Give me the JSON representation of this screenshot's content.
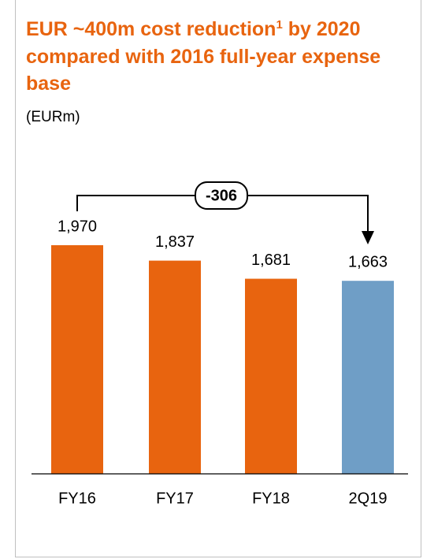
{
  "chart_data": {
    "type": "bar",
    "title": [
      "EUR ~400m cost reduction",
      "1",
      " by 2020 compared with 2016 full-year expense base"
    ],
    "subtitle": "(EURm)",
    "categories": [
      "FY16",
      "FY17",
      "FY18",
      "2Q19"
    ],
    "values": [
      1970,
      1837,
      1681,
      1663
    ],
    "value_labels": [
      "1,970",
      "1,837",
      "1,681",
      "1,663"
    ],
    "colors": [
      "#e8640f",
      "#e8640f",
      "#e8640f",
      "#6f9ec6"
    ],
    "annotation": "-306"
  }
}
